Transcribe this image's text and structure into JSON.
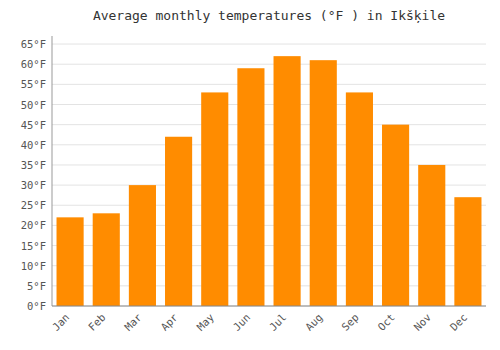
{
  "chart_data": {
    "type": "bar",
    "title": "Average monthly temperatures (°F ) in Ikšķile",
    "categories": [
      "Jan",
      "Feb",
      "Mar",
      "Apr",
      "May",
      "Jun",
      "Jul",
      "Aug",
      "Sep",
      "Oct",
      "Nov",
      "Dec"
    ],
    "values": [
      22,
      23,
      30,
      42,
      53,
      59,
      62,
      61,
      53,
      45,
      35,
      27
    ],
    "color": "#ff8c00",
    "ylim": [
      0,
      67
    ],
    "yticks": [
      {
        "value": 0,
        "label": "0°F"
      },
      {
        "value": 5,
        "label": "5°F"
      },
      {
        "value": 10,
        "label": "10°F"
      },
      {
        "value": 15,
        "label": "15°F"
      },
      {
        "value": 20,
        "label": "20°F"
      },
      {
        "value": 25,
        "label": "25°F"
      },
      {
        "value": 30,
        "label": "30°F"
      },
      {
        "value": 35,
        "label": "35°F"
      },
      {
        "value": 40,
        "label": "40°F"
      },
      {
        "value": 45,
        "label": "45°F"
      },
      {
        "value": 50,
        "label": "50°F"
      },
      {
        "value": 55,
        "label": "55°F"
      },
      {
        "value": 60,
        "label": "60°F"
      },
      {
        "value": 65,
        "label": "65°F"
      }
    ],
    "grid": true
  }
}
